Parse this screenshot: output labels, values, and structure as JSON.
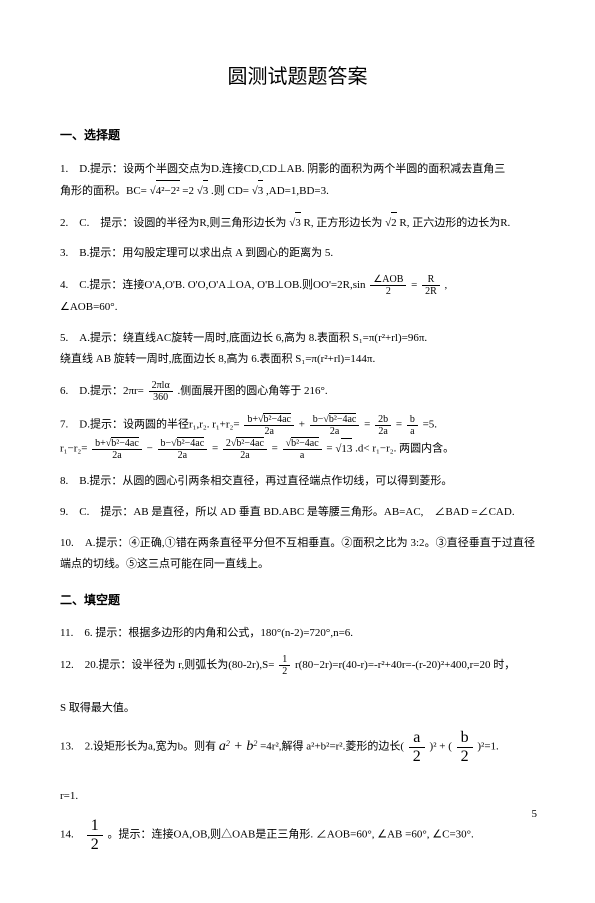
{
  "title": "圆测试题题答案",
  "sections": {
    "s1": {
      "head": "一、选择题"
    },
    "s2": {
      "head": "二、填空题"
    }
  },
  "q1": {
    "line1": "1.　D.提示：设两个半圆交点为D.连接CD,CD⊥AB. 阴影的面积为两个半圆的面积减去直角三",
    "line2a": "角形的面积。BC=",
    "sqrt1": "√(4²−2²)",
    "line2b": "=2",
    "sqrt2": "√3",
    "line2c": ".则 CD=",
    "sqrt3": "√3",
    "line2d": ",AD=1,BD=3."
  },
  "q2": {
    "a": "2.　C.　提示：设圆的半径为R,则三角形边长为",
    "sqrt1": "√3",
    "b": " R, 正方形边长为",
    "sqrt2": "√2",
    "c": " R, 正六边形的边长为R."
  },
  "q3": "3.　B.提示：用勾股定理可以求出点 A 到圆心的距离为 5.",
  "q4": {
    "a": "4.　C.提示：连接O'A,O'B. O'O,O'A⊥OA, O'B⊥OB.则OO'=2R,sin",
    "frac1n": "∠AOB",
    "frac1d": "2",
    "b": "=",
    "frac2n": "R",
    "frac2d": "2R",
    "c": " ,",
    "line2": "∠AOB=60°."
  },
  "q5": {
    "line1": "5.　A.提示：绕直线AC旋转一周时,底面边长 6,高为 8.表面积 S₁=π(r²+rl)=96π.",
    "line2": "绕直线 AB 旋转一周时,底面边长 8,高为 6.表面积 S₁=π(r²+rl)=144π."
  },
  "q6": {
    "a": "6.　D.提示：2πr=",
    "fn": "2πlα",
    "fd": "360",
    "b": ".侧面展开图的圆心角等于 216°."
  },
  "q7": {
    "a": "7.　D.提示：设两圆的半径r₁,r₂. r₁+r₂=",
    "f1n": "b+√(b²−4ac)",
    "f1d": "2a",
    "b": "+",
    "f2n": "b−√(b²−4ac)",
    "f2d": "2a",
    "c": "=",
    "f3n": "2b",
    "f3d": "2a",
    "d": "=",
    "f4n": "b",
    "f4d": "a",
    "e": "=5.",
    "line2a": "r₁−r₂=",
    "f5n": "b+√(b²−4ac)",
    "f5d": "2a",
    "line2b": " − ",
    "f6n": "b−√(b²−4ac)",
    "f6d": "2a",
    "line2c": "=",
    "f7n": "2√(b²−4ac)",
    "f7d": "2a",
    "line2d": "=",
    "f8n": "√(b²−4ac)",
    "f8d": "a",
    "line2e": "=",
    "sqrt": "√13",
    "line2f": " .d< r₁−r₂. 两圆内含。"
  },
  "q8": "8.　B.提示：从圆的圆心引两条相交直径，再过直径端点作切线，可以得到菱形。",
  "q9": "9.　C.　提示：AB 是直径，所以 AD 垂直 BD.ABC 是等腰三角形。AB=AC,　∠BAD =∠CAD.",
  "q10": "10.　A.提示：④正确,①错在两条直径平分但不互相垂直。②面积之比为 3:2。③直径垂直于过直径端点的切线。⑤这三点可能在同一直线上。",
  "q11": "11.　6.   提示：根据多边形的内角和公式，180°(n-2)=720°,n=6.",
  "q12": {
    "a": "12.　20.提示：设半径为 r,则弧长为(80-2r),S=",
    "fn": "1",
    "fd": "2",
    "b": "r(80−2r)=r(40-r)=-r²+40r=-(r-20)²+400,r=20 时，",
    "line2": "S 取得最大值。"
  },
  "q13": {
    "a": "13.　2.设矩形长为a,宽为b。则有",
    "expr1": "a² + b²",
    "b": "=4r²,解得 a²+b²=r².菱形的边长(",
    "fn1": "a",
    "fd1": "2",
    "c": ")² + (",
    "fn2": "b",
    "fd2": "2",
    "d": ")²=1.",
    "line2": "r=1."
  },
  "q14": {
    "fn": "1",
    "fd": "2",
    "a": "。提示：连接OA,OB,则△OAB是正三角形. ∠AOB=60°, ",
    "arc": "∠AB",
    "b": "=60°, ∠C=30°."
  },
  "page_num": "5"
}
